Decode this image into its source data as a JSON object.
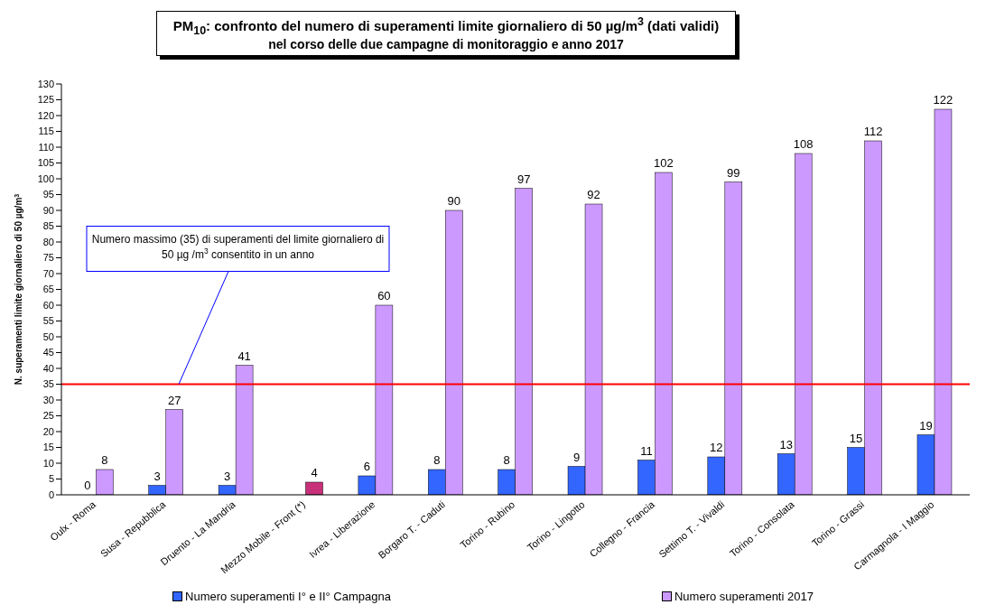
{
  "chart_data": {
    "type": "bar",
    "title": "PM$_{10}$: confronto del numero di superamenti limite giornaliero di 50 µg/m$^{3}$ (dati validi)",
    "subtitle": "nel corso delle due campagne di monitoraggio e anno 2017",
    "ylabel": "N. superamenti limite giornaliero di 50 µg/m$^{3}$",
    "categories": [
      "Oulx - Roma",
      "Susa - Repubblica",
      "Druento - La Mandria",
      "Mezzo Mobile - Front (*)",
      "Ivrea - Liberazione",
      "Borgaro T. - Caduti",
      "Torino - Rubino",
      "Torino - Lingotto",
      "Collegno - Francia",
      "Settimo T. - Vivaldi",
      "Torino - Consolata",
      "Torino - Grassi",
      "Carmagnola - I Maggio"
    ],
    "series": [
      {
        "name": "Numero superamenti I° e II° Campagna",
        "color": "#3366ff",
        "values": [
          0,
          3,
          3,
          null,
          6,
          8,
          8,
          9,
          11,
          12,
          13,
          15,
          19
        ]
      },
      {
        "name": "Numero superamenti 2017",
        "color": "#cc99ff",
        "colors": [
          "#cc99ff",
          "#cc99ff",
          "#cc99ff",
          "#c8307a",
          "#cc99ff",
          "#cc99ff",
          "#cc99ff",
          "#cc99ff",
          "#cc99ff",
          "#cc99ff",
          "#cc99ff",
          "#cc99ff",
          "#cc99ff"
        ],
        "values": [
          8,
          27,
          41,
          4,
          60,
          90,
          97,
          92,
          102,
          99,
          108,
          112,
          122
        ]
      }
    ],
    "ylim": [
      0,
      130
    ],
    "yticks": [
      0,
      5,
      10,
      15,
      20,
      25,
      30,
      35,
      40,
      45,
      50,
      55,
      60,
      65,
      70,
      75,
      80,
      85,
      90,
      95,
      100,
      105,
      110,
      115,
      120,
      125,
      130
    ],
    "ref_lines": [
      {
        "axis": "y",
        "value": 35,
        "color": "#ff0000",
        "label": "Numero massimo (35) di superamenti del limite giornaliero di 50 µg /m$^{3}$ consentito in un anno"
      }
    ],
    "data_labels": true,
    "grid": false,
    "legend": "bottom"
  }
}
